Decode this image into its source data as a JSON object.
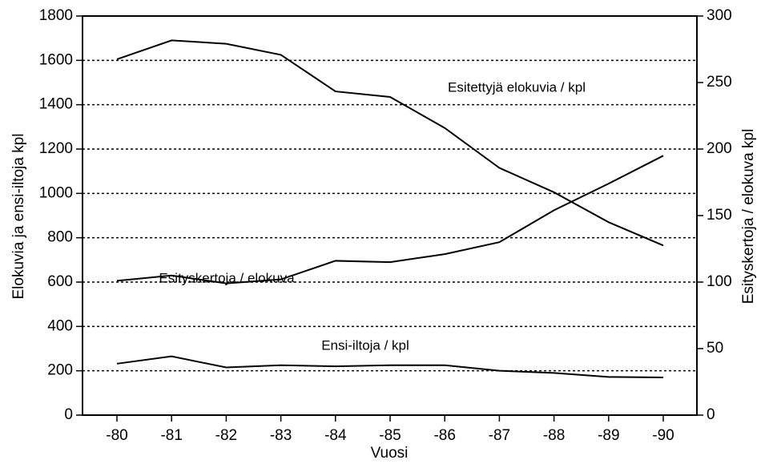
{
  "chart_data": {
    "type": "line",
    "xlabel": "Vuosi",
    "ylabel": "Elokuvia ja ensi-iltoja kpl",
    "y2label": "Esityskertoja / elokuva kpl",
    "categories": [
      "-80",
      "-81",
      "-82",
      "-83",
      "-84",
      "-85",
      "-86",
      "-87",
      "-88",
      "-89",
      "-90"
    ],
    "ylim": [
      0,
      1800
    ],
    "yticks": [
      0,
      200,
      400,
      600,
      800,
      1000,
      1200,
      1400,
      1600,
      1800
    ],
    "y2lim": [
      0,
      300
    ],
    "y2ticks": [
      0,
      50,
      100,
      150,
      200,
      250,
      300
    ],
    "grid": true,
    "series": [
      {
        "name": "Esitettyjä elokuvia / kpl",
        "color": "#000000",
        "values": [
          1605,
          1690,
          1675,
          1625,
          1460,
          1435,
          1295,
          1115,
          1005,
          870,
          765
        ]
      },
      {
        "name": "Esityskertoja / elokuva",
        "color": "#000000",
        "axis": "y2",
        "values": [
          101,
          105,
          99,
          102,
          116,
          115,
          121,
          130,
          154,
          174,
          195
        ]
      },
      {
        "name": "Ensi-iltoja / kpl",
        "color": "#000000",
        "values": [
          232,
          265,
          215,
          225,
          220,
          225,
          225,
          200,
          190,
          172,
          170
        ]
      }
    ]
  }
}
